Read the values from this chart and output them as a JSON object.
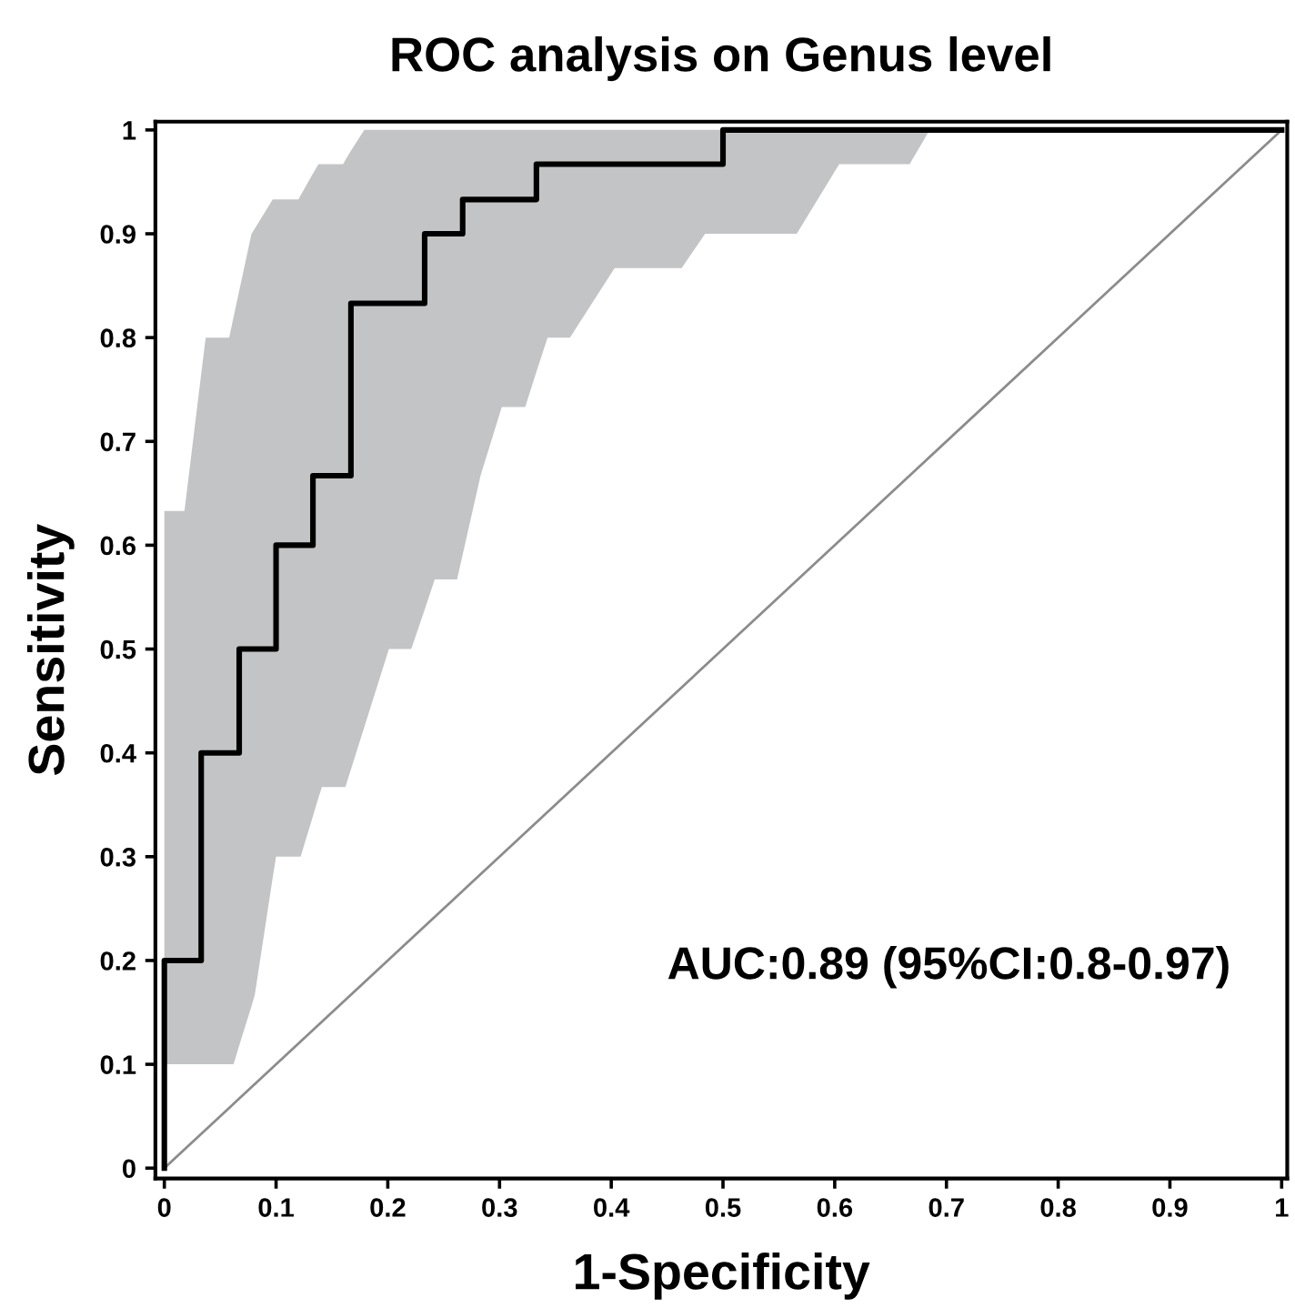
{
  "chart_data": {
    "type": "line",
    "title": "ROC analysis on Genus level",
    "xlabel": "1-Specificity",
    "ylabel": "Sensitivity",
    "annotations": [
      "AUC:0.89 (95%CI:0.8-0.97)"
    ],
    "xlim": [
      -0.008,
      1.005
    ],
    "ylim": [
      -0.01,
      1.008
    ],
    "xticks": [
      0,
      0.1,
      0.2,
      0.3,
      0.4,
      0.5,
      0.6,
      0.7,
      0.8,
      0.9,
      1
    ],
    "yticks": [
      0,
      0.1,
      0.2,
      0.3,
      0.4,
      0.5,
      0.6,
      0.7,
      0.8,
      0.9,
      1
    ],
    "grid": false,
    "legend": false,
    "marker": "none",
    "series": [
      {
        "color": "#8c8c8c",
        "x": [
          0,
          1
        ],
        "values": [
          0,
          1
        ]
      },
      {
        "color": "#000000",
        "x": [
          0,
          0,
          0.018,
          0.033,
          0.033,
          0.037,
          0.058,
          0.062,
          0.067,
          0.067,
          0.078,
          0.081,
          0.097,
          0.1,
          0.1,
          0.12,
          0.122,
          0.133,
          0.133,
          0.138,
          0.141,
          0.16,
          0.162,
          0.167,
          0.167,
          0.179,
          0.201,
          0.221,
          0.233,
          0.233,
          0.242,
          0.262,
          0.267,
          0.267,
          0.283,
          0.302,
          0.323,
          0.333,
          0.333,
          0.343,
          0.363,
          0.403,
          0.463,
          0.484,
          0.5,
          0.5,
          0.566,
          0.604,
          0.667,
          0.685,
          1
        ],
        "values": [
          0,
          0.2,
          0.2,
          0.2,
          0.4,
          0.4,
          0.4,
          0.4,
          0.4,
          0.5,
          0.5,
          0.5,
          0.5,
          0.5,
          0.6,
          0.6,
          0.6,
          0.6,
          0.667,
          0.667,
          0.667,
          0.667,
          0.667,
          0.667,
          0.833,
          0.833,
          0.833,
          0.833,
          0.833,
          0.9,
          0.9,
          0.9,
          0.9,
          0.933,
          0.933,
          0.933,
          0.933,
          0.933,
          0.967,
          0.967,
          0.967,
          0.967,
          0.967,
          0.967,
          0.967,
          1,
          1,
          1,
          1,
          1,
          1
        ],
        "lower": [
          0.1,
          0.1,
          0.1,
          0.1,
          0.1,
          0.1,
          0.1,
          0.1,
          0.118,
          0.118,
          0.156,
          0.167,
          0.28,
          0.3,
          0.3,
          0.3,
          0.3,
          0.339,
          0.339,
          0.357,
          0.367,
          0.367,
          0.367,
          0.384,
          0.384,
          0.425,
          0.5,
          0.5,
          0.538,
          0.538,
          0.567,
          0.567,
          0.591,
          0.591,
          0.667,
          0.733,
          0.733,
          0.767,
          0.767,
          0.8,
          0.8,
          0.867,
          0.867,
          0.9,
          0.9,
          0.9,
          0.9,
          0.967,
          0.967,
          1,
          1
        ],
        "upper": [
          0.633,
          0.633,
          0.633,
          0.765,
          0.765,
          0.8,
          0.8,
          0.82,
          0.845,
          0.845,
          0.9,
          0.905,
          0.933,
          0.933,
          0.933,
          0.933,
          0.937,
          0.958,
          0.958,
          0.967,
          0.967,
          0.967,
          0.971,
          0.98,
          0.98,
          1,
          1,
          1,
          1,
          1,
          1,
          1,
          1,
          1,
          1,
          1,
          1,
          1,
          1,
          1,
          1,
          1,
          1,
          1,
          1,
          1,
          1,
          1,
          1,
          1,
          1
        ]
      }
    ]
  }
}
